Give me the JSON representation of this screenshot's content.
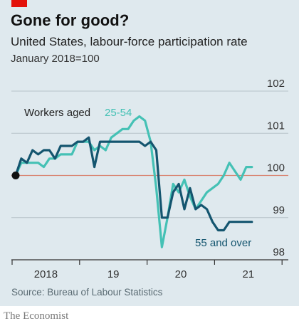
{
  "header": {
    "title": "Gone for good?",
    "subtitle": "United States, labour-force participation rate",
    "note": "January 2018=100"
  },
  "footer": {
    "source": "Source: Bureau of Labour Statistics",
    "brand": "The Economist"
  },
  "colors": {
    "background": "#dfe9ee",
    "series_25_54": "#45c1b5",
    "series_55_over": "#14556f",
    "baseline": "#d9826f",
    "brand_red": "#e3120b"
  },
  "chart_data": {
    "type": "line",
    "title": "Gone for good?",
    "subtitle": "United States, labour-force participation rate",
    "note": "January 2018=100",
    "x_ticks": [
      "2018",
      "19",
      "20",
      "21"
    ],
    "y_ticks": [
      "98",
      "99",
      "100",
      "101",
      "102"
    ],
    "ylim": [
      98,
      102
    ],
    "xlim": [
      "2018-01",
      "2021-08"
    ],
    "legend_prefix": "Workers aged",
    "reference_line": 100,
    "series": [
      {
        "name": "25-54",
        "color": "#45c1b5",
        "x": [
          "2018-01",
          "2018-02",
          "2018-03",
          "2018-04",
          "2018-05",
          "2018-06",
          "2018-07",
          "2018-08",
          "2018-09",
          "2018-10",
          "2018-11",
          "2018-12",
          "2019-01",
          "2019-02",
          "2019-03",
          "2019-04",
          "2019-05",
          "2019-06",
          "2019-07",
          "2019-08",
          "2019-09",
          "2019-10",
          "2019-11",
          "2019-12",
          "2020-01",
          "2020-02",
          "2020-03",
          "2020-04",
          "2020-05",
          "2020-06",
          "2020-07",
          "2020-08",
          "2020-09",
          "2020-10",
          "2020-11",
          "2020-12",
          "2021-01",
          "2021-02",
          "2021-03",
          "2021-04",
          "2021-05",
          "2021-06",
          "2021-07"
        ],
        "values": [
          100.0,
          100.3,
          100.3,
          100.3,
          100.3,
          100.2,
          100.4,
          100.4,
          100.5,
          100.5,
          100.5,
          100.8,
          100.8,
          100.8,
          100.6,
          100.7,
          100.6,
          100.9,
          101.0,
          101.1,
          101.1,
          101.3,
          101.4,
          101.3,
          100.8,
          99.7,
          98.3,
          99.0,
          99.8,
          99.6,
          99.9,
          99.5,
          99.2,
          99.4,
          99.6,
          99.7,
          99.8,
          100.0,
          100.3,
          100.1,
          99.9,
          100.2,
          100.2
        ]
      },
      {
        "name": "55 and over",
        "color": "#14556f",
        "x": [
          "2018-01",
          "2018-02",
          "2018-03",
          "2018-04",
          "2018-05",
          "2018-06",
          "2018-07",
          "2018-08",
          "2018-09",
          "2018-10",
          "2018-11",
          "2018-12",
          "2019-01",
          "2019-02",
          "2019-03",
          "2019-04",
          "2019-05",
          "2019-06",
          "2019-07",
          "2019-08",
          "2019-09",
          "2019-10",
          "2019-11",
          "2019-12",
          "2020-01",
          "2020-02",
          "2020-03",
          "2020-04",
          "2020-05",
          "2020-06",
          "2020-07",
          "2020-08",
          "2020-09",
          "2020-10",
          "2020-11",
          "2020-12",
          "2021-01",
          "2021-02",
          "2021-03",
          "2021-04",
          "2021-05",
          "2021-06",
          "2021-07"
        ],
        "values": [
          100.0,
          100.4,
          100.3,
          100.6,
          100.5,
          100.6,
          100.6,
          100.4,
          100.7,
          100.7,
          100.7,
          100.8,
          100.8,
          100.9,
          100.2,
          100.8,
          100.8,
          100.8,
          100.8,
          100.8,
          100.8,
          100.8,
          100.8,
          100.7,
          100.8,
          100.6,
          99.0,
          99.0,
          99.6,
          99.8,
          99.2,
          99.7,
          99.2,
          99.3,
          99.2,
          98.9,
          98.7,
          98.7,
          98.9,
          98.9,
          98.9,
          98.9,
          98.9
        ]
      }
    ]
  }
}
